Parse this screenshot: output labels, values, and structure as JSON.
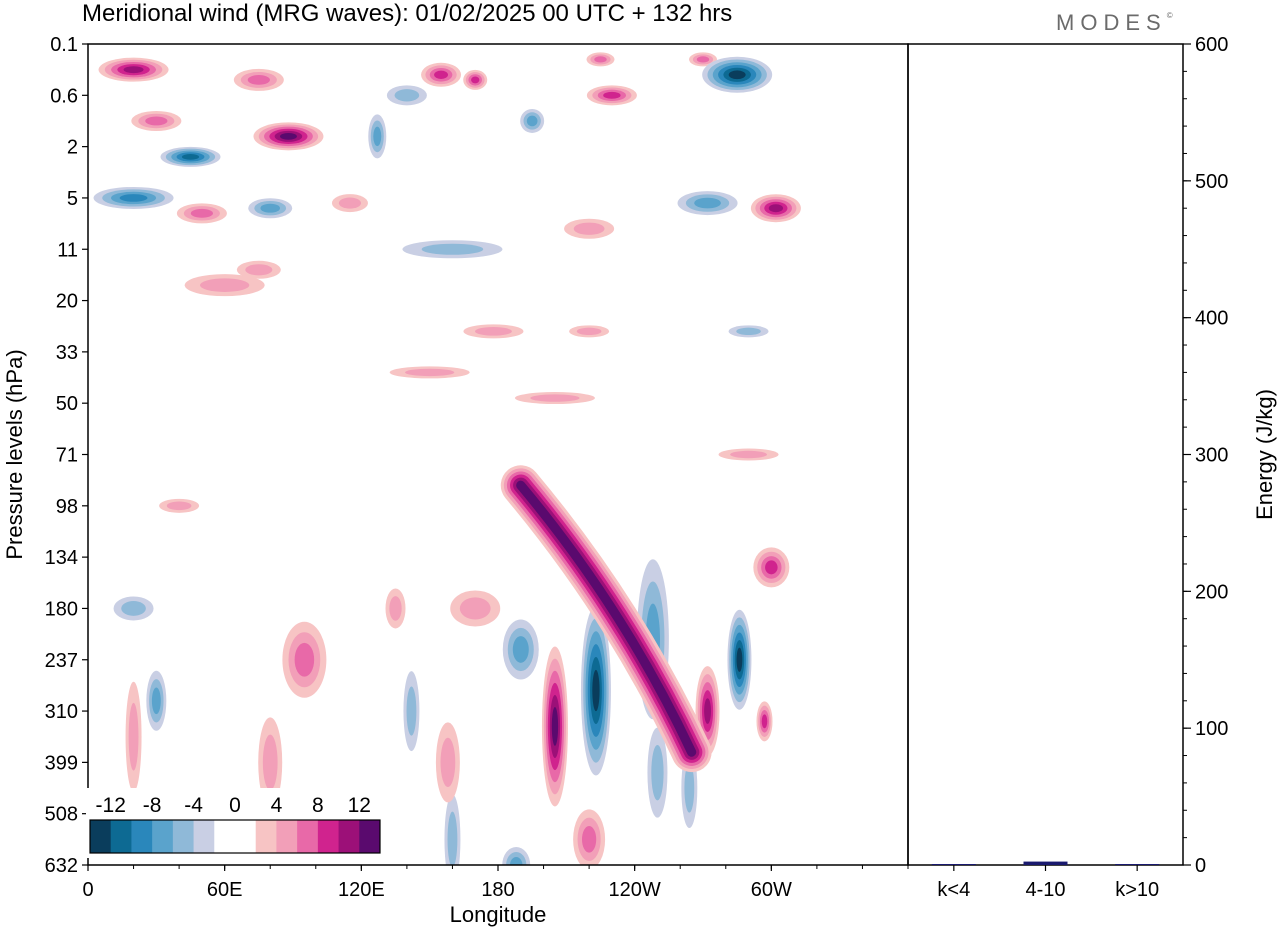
{
  "header": {
    "title": "Meridional wind (MRG waves):  01/02/2025  00 UTC  + 132 hrs",
    "brand": "MODES",
    "brand_mark": "©"
  },
  "chart_data": [
    {
      "type": "heatmap",
      "title": "Meridional wind (MRG waves):  01/02/2025  00 UTC  + 132 hrs",
      "xlabel": "Longitude",
      "ylabel": "Pressure levels (hPa)",
      "x_ticks": [
        "0",
        "60E",
        "120E",
        "180",
        "120W",
        "60W"
      ],
      "y_ticks": [
        "0.1",
        "0.6",
        "2",
        "5",
        "11",
        "20",
        "33",
        "50",
        "71",
        "98",
        "134",
        "180",
        "237",
        "310",
        "399",
        "508",
        "632"
      ],
      "colorbar": {
        "labels": [
          "-12",
          "-8",
          "-4",
          "0",
          "4",
          "8",
          "12"
        ],
        "colors": [
          "#0a3d5c",
          "#0d6a93",
          "#2a87bb",
          "#5aa3cc",
          "#8fb9d8",
          "#c9cfe4",
          "#ffffff",
          "#ffffff",
          "#f7c4c4",
          "#f29fb8",
          "#e869a8",
          "#d0238e",
          "#9c1078",
          "#5a0a6e"
        ]
      },
      "features": [
        {
          "lon": 20,
          "lev": 0.5,
          "rx": 35,
          "ry": 12,
          "v": 10
        },
        {
          "lon": 30,
          "lev": 1.5,
          "rx": 25,
          "ry": 10,
          "v": 6
        },
        {
          "lon": 45,
          "lev": 2.2,
          "rx": 30,
          "ry": 10,
          "v": -10
        },
        {
          "lon": 20,
          "lev": 3.0,
          "rx": 40,
          "ry": 11,
          "v": -8
        },
        {
          "lon": 50,
          "lev": 3.3,
          "rx": 25,
          "ry": 10,
          "v": 6
        },
        {
          "lon": 88,
          "lev": 1.8,
          "rx": 35,
          "ry": 14,
          "v": 14
        },
        {
          "lon": 80,
          "lev": 3.2,
          "rx": 22,
          "ry": 10,
          "v": -5
        },
        {
          "lon": 75,
          "lev": 0.7,
          "rx": 25,
          "ry": 11,
          "v": 5
        },
        {
          "lon": 127,
          "lev": 1.8,
          "rx": 9,
          "ry": 22,
          "v": -6
        },
        {
          "lon": 140,
          "lev": 1.0,
          "rx": 20,
          "ry": 10,
          "v": -4
        },
        {
          "lon": 155,
          "lev": 0.6,
          "rx": 20,
          "ry": 12,
          "v": 8
        },
        {
          "lon": 170,
          "lev": 0.7,
          "rx": 12,
          "ry": 10,
          "v": 8
        },
        {
          "lon": 195,
          "lev": 1.5,
          "rx": 12,
          "ry": 12,
          "v": -5
        },
        {
          "lon": 230,
          "lev": 1.0,
          "rx": 25,
          "ry": 10,
          "v": 9
        },
        {
          "lon": 225,
          "lev": 0.3,
          "rx": 14,
          "ry": 7,
          "v": 6
        },
        {
          "lon": 270,
          "lev": 0.3,
          "rx": 14,
          "ry": 7,
          "v": 5
        },
        {
          "lon": 285,
          "lev": 0.6,
          "rx": 35,
          "ry": 18,
          "v": -13
        },
        {
          "lon": 272,
          "lev": 3.1,
          "rx": 30,
          "ry": 12,
          "v": -6
        },
        {
          "lon": 302,
          "lev": 3.2,
          "rx": 25,
          "ry": 14,
          "v": 10
        },
        {
          "lon": 160,
          "lev": 4.0,
          "rx": 50,
          "ry": 9,
          "v": -3
        },
        {
          "lon": 220,
          "lev": 3.6,
          "rx": 25,
          "ry": 10,
          "v": 3
        },
        {
          "lon": 60,
          "lev": 4.7,
          "rx": 40,
          "ry": 11,
          "v": 4
        },
        {
          "lon": 75,
          "lev": 4.4,
          "rx": 22,
          "ry": 9,
          "v": 3
        },
        {
          "lon": 115,
          "lev": 3.1,
          "rx": 18,
          "ry": 9,
          "v": 3
        },
        {
          "lon": 178,
          "lev": 5.6,
          "rx": 30,
          "ry": 7,
          "v": 3
        },
        {
          "lon": 150,
          "lev": 6.4,
          "rx": 40,
          "ry": 6,
          "v": 3
        },
        {
          "lon": 205,
          "lev": 6.9,
          "rx": 40,
          "ry": 6,
          "v": 3
        },
        {
          "lon": 290,
          "lev": 8.0,
          "rx": 30,
          "ry": 6,
          "v": 3
        },
        {
          "lon": 290,
          "lev": 5.6,
          "rx": 20,
          "ry": 6,
          "v": -3
        },
        {
          "lon": 220,
          "lev": 5.6,
          "rx": 20,
          "ry": 6,
          "v": 3
        },
        {
          "lon": 40,
          "lev": 9.0,
          "rx": 20,
          "ry": 7,
          "v": 3
        },
        {
          "lon": 20,
          "lev": 11.0,
          "rx": 20,
          "ry": 12,
          "v": -3
        },
        {
          "lon": 170,
          "lev": 11.0,
          "rx": 25,
          "ry": 18,
          "v": 3
        },
        {
          "lon": 190,
          "lev": 11.8,
          "rx": 18,
          "ry": 30,
          "v": -5
        },
        {
          "lon": 95,
          "lev": 12.0,
          "rx": 22,
          "ry": 38,
          "v": 6
        },
        {
          "lon": 80,
          "lev": 14.0,
          "rx": 12,
          "ry": 45,
          "v": 3
        },
        {
          "lon": 30,
          "lev": 12.8,
          "rx": 10,
          "ry": 30,
          "v": -5
        },
        {
          "lon": 20,
          "lev": 13.5,
          "rx": 8,
          "ry": 55,
          "v": 3
        },
        {
          "lon": 205,
          "lev": 13.3,
          "rx": 13,
          "ry": 80,
          "v": 14
        },
        {
          "lon": 223,
          "lev": 12.6,
          "rx": 15,
          "ry": 85,
          "v": -14
        },
        {
          "lon": 248,
          "lev": 11.6,
          "rx": 16,
          "ry": 80,
          "v": -6
        },
        {
          "lon": 286,
          "lev": 12.0,
          "rx": 12,
          "ry": 50,
          "v": -13
        },
        {
          "lon": 272,
          "lev": 13.0,
          "rx": 12,
          "ry": 45,
          "v": 10
        },
        {
          "lon": 300,
          "lev": 10.2,
          "rx": 18,
          "ry": 20,
          "v": 8
        },
        {
          "lon": 297,
          "lev": 13.2,
          "rx": 8,
          "ry": 20,
          "v": 8
        },
        {
          "lon": 160,
          "lev": 15.5,
          "rx": 8,
          "ry": 45,
          "v": -4
        },
        {
          "lon": 158,
          "lev": 14.0,
          "rx": 12,
          "ry": 40,
          "v": 3
        },
        {
          "lon": 220,
          "lev": 15.5,
          "rx": 16,
          "ry": 30,
          "v": 6
        },
        {
          "lon": 188,
          "lev": 16.0,
          "rx": 14,
          "ry": 18,
          "v": -6
        },
        {
          "lon": 250,
          "lev": 14.2,
          "rx": 10,
          "ry": 45,
          "v": -4
        },
        {
          "lon": 264,
          "lev": 14.5,
          "rx": 8,
          "ry": 40,
          "v": -3
        },
        {
          "lon": 142,
          "lev": 13.0,
          "rx": 8,
          "ry": 40,
          "v": -3
        },
        {
          "lon": 135,
          "lev": 11.0,
          "rx": 10,
          "ry": 20,
          "v": 3
        }
      ],
      "features_band": [
        {
          "lon0": 190,
          "lev0": 8.6,
          "lon1": 265,
          "lev1": 13.8,
          "w": 20,
          "v": 14
        }
      ]
    },
    {
      "type": "bar",
      "ylabel": "Energy (J/kg)",
      "categories": [
        "k<4",
        "4-10",
        "k>10"
      ],
      "values": [
        0.4,
        2.5,
        0.2
      ],
      "ylim": [
        0,
        600
      ],
      "y_ticks": [
        "0",
        "100",
        "200",
        "300",
        "400",
        "500",
        "600"
      ],
      "bar_color": "#1a1a6e"
    }
  ]
}
